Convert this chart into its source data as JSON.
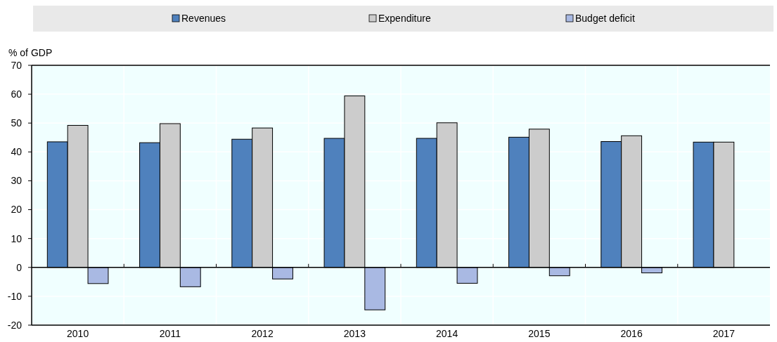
{
  "chart_data": {
    "type": "bar",
    "ylabel": "% of GDP",
    "categories": [
      "2010",
      "2011",
      "2012",
      "2013",
      "2014",
      "2015",
      "2016",
      "2017"
    ],
    "series": [
      {
        "name": "Revenues",
        "color": "#4f81bd",
        "values": [
          43.5,
          43.2,
          44.4,
          44.7,
          44.7,
          45.1,
          43.6,
          43.4
        ]
      },
      {
        "name": "Expenditure",
        "color": "#cccccc",
        "values": [
          49.2,
          49.8,
          48.3,
          59.4,
          50.1,
          47.9,
          45.6,
          43.4
        ]
      },
      {
        "name": "Budget deficit",
        "color": "#a9b9e3",
        "values": [
          -5.6,
          -6.7,
          -4.0,
          -14.7,
          -5.5,
          -2.9,
          -1.9,
          null
        ]
      }
    ],
    "ylim": [
      -20,
      70
    ],
    "yticks": [
      -20,
      -10,
      0,
      10,
      20,
      30,
      40,
      50,
      60,
      70
    ],
    "grid": true,
    "legend": "top"
  }
}
